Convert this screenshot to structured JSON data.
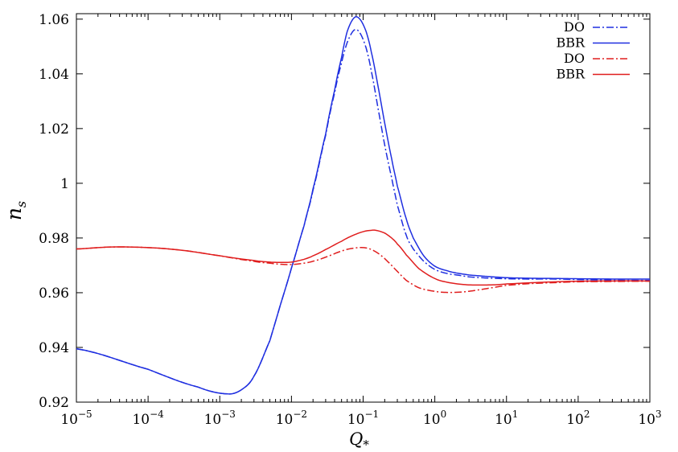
{
  "chart_data": {
    "type": "line",
    "title": "",
    "xlabel": "Q",
    "xlabel_sub": "*",
    "ylabel": "n",
    "ylabel_sub": "s",
    "x_scale": "log",
    "xlim": [
      1e-05,
      1000
    ],
    "ylim": [
      0.92,
      1.062
    ],
    "grid": false,
    "legend_position": "top-right",
    "x_ticks": [
      {
        "value": 1e-05,
        "base": "10",
        "exp": "−5"
      },
      {
        "value": 0.0001,
        "base": "10",
        "exp": "−4"
      },
      {
        "value": 0.001,
        "base": "10",
        "exp": "−3"
      },
      {
        "value": 0.01,
        "base": "10",
        "exp": "−2"
      },
      {
        "value": 0.1,
        "base": "10",
        "exp": "−1"
      },
      {
        "value": 1,
        "base": "10",
        "exp": "0"
      },
      {
        "value": 10,
        "base": "10",
        "exp": "1"
      },
      {
        "value": 100,
        "base": "10",
        "exp": "2"
      },
      {
        "value": 1000,
        "base": "10",
        "exp": "3"
      }
    ],
    "y_ticks": [
      {
        "value": 0.92,
        "label": "0.92"
      },
      {
        "value": 0.94,
        "label": "0.94"
      },
      {
        "value": 0.96,
        "label": "0.96"
      },
      {
        "value": 0.98,
        "label": "0.98"
      },
      {
        "value": 1.0,
        "label": "1"
      },
      {
        "value": 1.02,
        "label": "1.02"
      },
      {
        "value": 1.04,
        "label": "1.04"
      },
      {
        "value": 1.06,
        "label": "1.06"
      }
    ],
    "series": [
      {
        "name": "DO",
        "color": "#1f2fe0",
        "dash": "dashdot",
        "x": [
          1e-05,
          0.0001,
          0.0005,
          0.0013,
          0.002,
          0.003,
          0.005,
          0.007,
          0.01,
          0.015,
          0.02,
          0.03,
          0.04,
          0.05,
          0.06,
          0.075,
          0.09,
          0.11,
          0.13,
          0.16,
          0.2,
          0.25,
          0.3,
          0.4,
          0.5,
          0.7,
          1,
          1.5,
          2,
          3,
          5,
          10,
          20,
          50,
          100,
          300,
          1000
        ],
        "y": [
          0.9395,
          0.932,
          0.9255,
          0.923,
          0.9245,
          0.9295,
          0.9425,
          0.9555,
          0.969,
          0.9845,
          0.9975,
          1.0175,
          1.033,
          1.044,
          1.0515,
          1.056,
          1.055,
          1.0495,
          1.041,
          1.028,
          1.014,
          1.002,
          0.992,
          0.981,
          0.976,
          0.9715,
          0.9685,
          0.967,
          0.9665,
          0.9658,
          0.9654,
          0.9651,
          0.965,
          0.965,
          0.9648,
          0.9646,
          0.9645
        ]
      },
      {
        "name": "BBR",
        "color": "#1f2fe0",
        "dash": "solid",
        "x": [
          1e-05,
          0.0001,
          0.0005,
          0.0013,
          0.002,
          0.003,
          0.005,
          0.007,
          0.01,
          0.015,
          0.02,
          0.03,
          0.04,
          0.05,
          0.06,
          0.075,
          0.09,
          0.11,
          0.13,
          0.16,
          0.2,
          0.25,
          0.3,
          0.4,
          0.5,
          0.7,
          1,
          1.5,
          2,
          3,
          5,
          10,
          20,
          50,
          100,
          300,
          1000
        ],
        "y": [
          0.9395,
          0.932,
          0.9255,
          0.923,
          0.9245,
          0.9295,
          0.9425,
          0.9555,
          0.969,
          0.9845,
          0.998,
          1.018,
          1.034,
          1.046,
          1.0555,
          1.0605,
          1.06,
          1.0555,
          1.048,
          1.036,
          1.022,
          1.009,
          0.999,
          0.987,
          0.98,
          0.9735,
          0.9697,
          0.968,
          0.9672,
          0.9665,
          0.966,
          0.9655,
          0.9653,
          0.9652,
          0.9651,
          0.965,
          0.965
        ]
      },
      {
        "name": "DO",
        "color": "#e01e1e",
        "dash": "dashdot",
        "x": [
          1e-05,
          3e-05,
          0.0001,
          0.0003,
          0.001,
          0.003,
          0.005,
          0.007,
          0.01,
          0.015,
          0.02,
          0.03,
          0.05,
          0.07,
          0.1,
          0.13,
          0.17,
          0.22,
          0.3,
          0.4,
          0.6,
          1,
          1.5,
          2.5,
          4,
          7,
          10,
          20,
          50,
          100,
          300,
          1000
        ],
        "y": [
          0.976,
          0.9767,
          0.9765,
          0.9755,
          0.9735,
          0.9715,
          0.9708,
          0.9704,
          0.9703,
          0.9708,
          0.9715,
          0.973,
          0.9752,
          0.9762,
          0.9765,
          0.9758,
          0.974,
          0.9714,
          0.9678,
          0.9645,
          0.9618,
          0.9605,
          0.9601,
          0.9603,
          0.961,
          0.962,
          0.9627,
          0.9633,
          0.9637,
          0.964,
          0.9641,
          0.9642
        ]
      },
      {
        "name": "BBR",
        "color": "#e01e1e",
        "dash": "solid",
        "x": [
          1e-05,
          3e-05,
          0.0001,
          0.0003,
          0.001,
          0.003,
          0.005,
          0.007,
          0.01,
          0.015,
          0.02,
          0.03,
          0.05,
          0.07,
          0.1,
          0.13,
          0.15,
          0.2,
          0.25,
          0.3,
          0.4,
          0.6,
          1,
          1.5,
          2.5,
          4,
          7,
          10,
          20,
          50,
          100,
          300,
          1000
        ],
        "y": [
          0.976,
          0.9767,
          0.9765,
          0.9755,
          0.9735,
          0.9718,
          0.9712,
          0.9711,
          0.9712,
          0.9722,
          0.9735,
          0.9758,
          0.9788,
          0.9808,
          0.9823,
          0.9828,
          0.9828,
          0.9818,
          0.98,
          0.9778,
          0.9738,
          0.9688,
          0.9652,
          0.9638,
          0.963,
          0.9628,
          0.9629,
          0.9632,
          0.9636,
          0.964,
          0.9642,
          0.9643,
          0.9643
        ]
      }
    ]
  }
}
